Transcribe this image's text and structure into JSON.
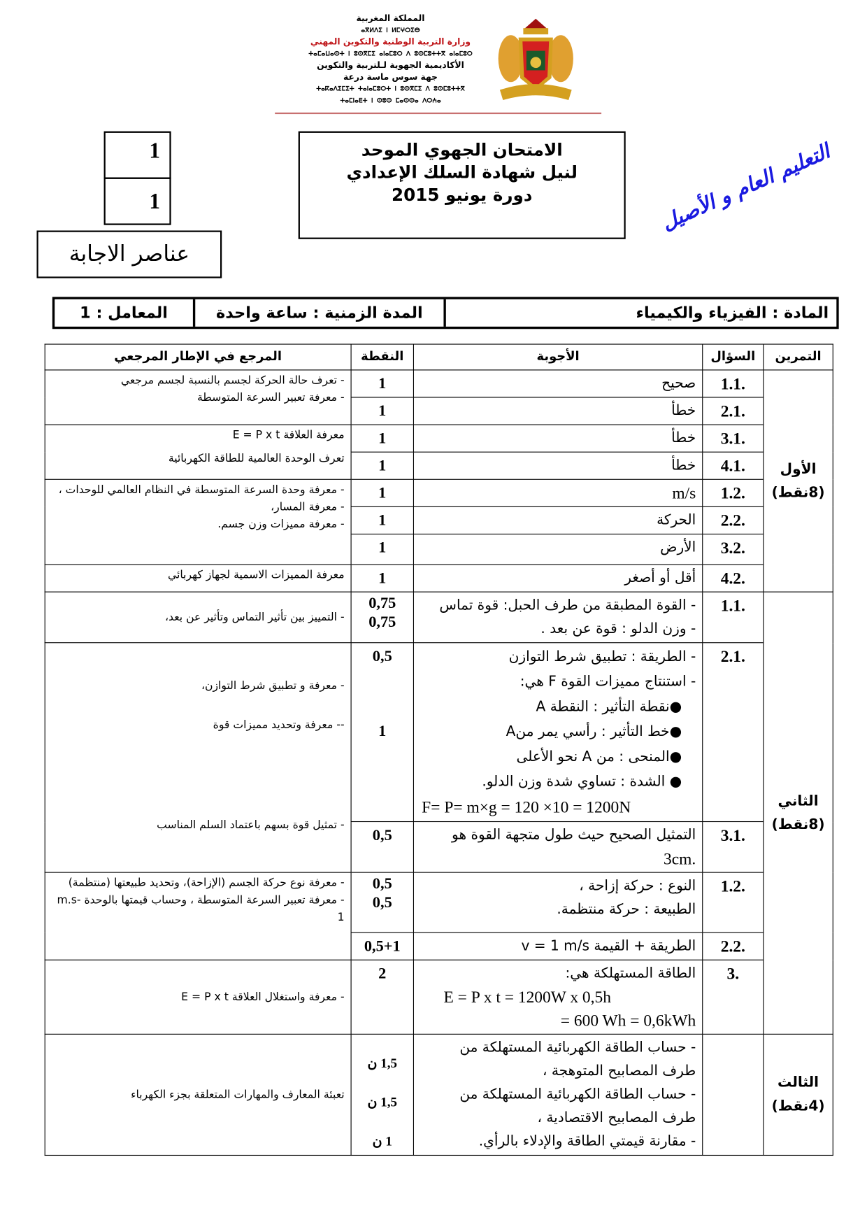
{
  "header": {
    "kingdom": "المملكة المغربية",
    "kingdom_tifinagh": "ⴰⴳⵍⴷⵉ ⵏ ⵍⵎⵖⵔⵉⴱ",
    "ministry": "وزارة التربية الوطنية والتكوين المهني",
    "ministry_tifinagh": "ⵜⴰⵎⴰⵡⴰⵙⵜ ⵏ ⵓⵙⴳⵎⵉ ⴰⵏⴰⵎⵓⵔ ⴷ ⵓⵙⵎⵓⵜⵜⴳ ⴰⵏⴰⵎⵓⵔ",
    "academy": "الأكاديمية الجهوية لـلتربية والتكوين",
    "region": "جهة سوس ماسة درعة",
    "academy_tifinagh": "ⵜⴰⴽⴰⴷⵉⵎⵉⵜ ⵜⴰⵏⴰⵎⵓⵔⵜ ⵏ ⵓⵙⴳⵎⵉ ⴷ ⵓⵙⵎⵓⵜⵜⴳ",
    "region_tifinagh": "ⵜⴰⵎⵏⴰⴹⵜ ⵏ ⵙⵓⵙ ⵎⴰⵙⵙⴰ ⴷⵔⵄⴰ",
    "page_number": "1",
    "page_total": "1",
    "answer_elements": "عناصر الاجابة",
    "exam_title": "الامتحان الجهوي الموحد",
    "exam_subtitle": "لنيل شهادة السلك الإعدادي",
    "session": "دورة يونيو  2015",
    "track": "التعليم العام و الأصيل"
  },
  "subject_bar": {
    "subject": "المادة : الفيزياء والكيمياء",
    "duration": "المدة الزمنية : ساعة واحدة",
    "coefficient": "المعامل : 1"
  },
  "table": {
    "headers": {
      "exercise": "التمرين",
      "question": "السؤال",
      "answers": "الأجوبة",
      "points": "النقطة",
      "reference": "المرجع في الإطار المرجعي"
    },
    "ex1": {
      "label": "الأول",
      "points": "(8نقط)",
      "rows": [
        {
          "q": ".1.1",
          "a": "صحيح",
          "p": "1"
        },
        {
          "q": ".2.1",
          "a": "خطأ",
          "p": "1"
        },
        {
          "q": ".3.1",
          "a": "خطأ",
          "p": "1"
        },
        {
          "q": ".4.1",
          "a": "خطأ",
          "p": "1"
        },
        {
          "q": ".1.2",
          "a": "m/s",
          "p": "1"
        },
        {
          "q": ".2.2",
          "a": "الحركة",
          "p": "1"
        },
        {
          "q": ".3.2",
          "a": "الأرض",
          "p": "1"
        },
        {
          "q": ".4.2",
          "a": "أقل أو أصغر",
          "p": "1"
        }
      ],
      "refs": [
        [
          "- تعرف حالة الحركة لجسم بالنسبة لجسم مرجعي",
          "- معرفة تعبير السرعة المتوسطة"
        ],
        [
          "معرفة العلاقة  E = P x t",
          "تعرف  الوحدة العالمية للطاقة الكهربائية"
        ],
        [
          "- معرفة وحدة السرعة المتوسطة في النظام العالمي للوحدات ،",
          "- معرفة المسار،",
          "- معرفة مميزات وزن جسم."
        ],
        [
          "معرفة المميزات الاسمية لجهاز كهربائي"
        ]
      ]
    },
    "ex2": {
      "label": "الثاني",
      "points": "(8نقط)",
      "r1": {
        "q": ".1.1",
        "a": [
          "- القوة المطبقة من طرف الحبل: قوة تماس",
          "- وزن الدلو : قوة عن بعد ."
        ],
        "p": [
          "0,75",
          "0,75"
        ],
        "ref": "- التمييز بين تأثير التماس وتأثير عن بعد،"
      },
      "r2": {
        "q": ".2.1",
        "a": [
          "- الطريقة : تطبيق شرط التوازن",
          "- استنتاج مميزات القوة F هي:",
          "●نقطة التأثير : النقطة A",
          "●خط التأثير : رأسي يمر منA",
          "●المنحى : من A نحو الأعلى",
          "●   الشدة : تساوي شدة وزن الدلو.",
          "F= P= m×g = 120 ×10 = 1200N"
        ],
        "p": [
          "0,5",
          "1"
        ],
        "ref": [
          "- معرفة و تطبيق شرط التوازن،",
          "-- معرفة وتحديد مميزات قوة"
        ]
      },
      "r3": {
        "q": ".3.1",
        "a": [
          "التمثيل الصحيح حيث طول متجهة القوة هو",
          ".3cm"
        ],
        "p": "0,5",
        "ref": "- تمثيل قوة بسهم باعتماد السلم المناسب"
      },
      "r4": {
        "q": ".1.2",
        "a": [
          "النوع : حركة إزاحة ،",
          "الطبيعة : حركة منتظمة."
        ],
        "p": [
          "0,5",
          "0,5"
        ],
        "ref": [
          "- معرفة نوع حركة الجسم (الإزاحة)، وتحديد طبيعتها (منتظمة)",
          "- معرفة تعبير السرعة المتوسطة ، وحساب قيمتها بالوحدة  m.s-1"
        ]
      },
      "r5": {
        "q": ".2.2",
        "a": "الطريقة + القيمة  v = 1  m/s",
        "p": "0,5+1"
      },
      "r6": {
        "q": ".3",
        "a": [
          "الطاقة المستهلكة هي:",
          "E = P x t = 1200W x 0,5h",
          "= 600 Wh = 0,6kWh"
        ],
        "p": "2",
        "ref": "- معرفة واستغلال العلاقة  E = P x t"
      }
    },
    "ex3": {
      "label": "الثالث",
      "points": "(4نقط)",
      "a": [
        "- حساب الطاقة الكهربائية المستهلكة من",
        "طرف المصابيح المتوهجة ،",
        "- حساب الطاقة الكهربائية المستهلكة من",
        "طرف المصابيح الاقتصادية ،",
        "- مقارنة قيمتي الطاقة والإدلاء بالرأي."
      ],
      "p": [
        "1,5 ن",
        "1,5 ن",
        "1 ن"
      ],
      "ref": "تعبئة المعارف والمهارات المتعلقة بجزء الكهرباء"
    }
  },
  "colors": {
    "ministry_red": "#c0181c",
    "header_rule": "#c87070",
    "track_blue": "#1a1ae0"
  }
}
